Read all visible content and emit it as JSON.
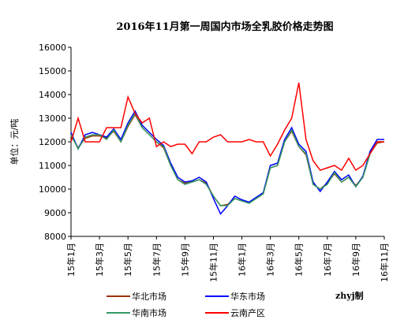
{
  "chart_data": {
    "type": "line",
    "title": "2016年11月第一周国内市场全乳胶价格走势图",
    "y_label": "单位：元/吨",
    "note": "zhyj制",
    "categories": [
      "15年1月",
      null,
      null,
      null,
      "15年3月",
      null,
      null,
      null,
      "15年5月",
      null,
      null,
      null,
      "15年7月",
      null,
      null,
      null,
      "15年9月",
      null,
      null,
      null,
      "15年11月",
      null,
      null,
      null,
      "16年1月",
      null,
      null,
      null,
      "16年3月",
      null,
      null,
      null,
      "16年5月",
      null,
      null,
      null,
      "16年7月",
      null,
      null,
      null,
      "16年9月",
      null,
      null,
      null,
      "16年11月"
    ],
    "ylim": [
      8000,
      16000
    ],
    "yticks": [
      8000,
      9000,
      10000,
      11000,
      12000,
      13000,
      14000,
      15000,
      16000
    ],
    "grid": false,
    "series": [
      {
        "name": "华北市场",
        "color": "#993300",
        "values": [
          12250,
          11750,
          12150,
          12250,
          12250,
          12150,
          12450,
          12000,
          12650,
          13150,
          12600,
          12300,
          12000,
          11750,
          11000,
          10400,
          10250,
          10300,
          10400,
          10250,
          9700,
          9300,
          9350,
          9600,
          9500,
          9450,
          9600,
          9800,
          10900,
          11000,
          12000,
          12450,
          11800,
          11450,
          10200,
          10000,
          10250,
          10650,
          10300,
          10500,
          10150,
          10500,
          11500,
          11950,
          12000
        ]
      },
      {
        "name": "华东市场",
        "color": "#0000ff",
        "values": [
          12400,
          11700,
          12300,
          12400,
          12300,
          12200,
          12550,
          12100,
          12800,
          13300,
          12700,
          12400,
          12100,
          11850,
          11100,
          10500,
          10300,
          10350,
          10500,
          10300,
          9600,
          8950,
          9300,
          9700,
          9550,
          9450,
          9650,
          9850,
          11000,
          11100,
          12100,
          12600,
          11900,
          11600,
          10300,
          9900,
          10300,
          10750,
          10400,
          10600,
          10100,
          10550,
          11600,
          12100,
          12100
        ]
      },
      {
        "name": "华南市场",
        "color": "#339966",
        "values": [
          12300,
          11700,
          12200,
          12300,
          12300,
          12100,
          12500,
          12000,
          12700,
          13200,
          12600,
          12300,
          12000,
          11800,
          11000,
          10400,
          10200,
          10300,
          10400,
          10200,
          9700,
          9300,
          9300,
          9600,
          9500,
          9400,
          9600,
          9800,
          10900,
          11000,
          12000,
          12500,
          11800,
          11500,
          10200,
          10000,
          10200,
          10700,
          10300,
          10500,
          10100,
          10500,
          11500,
          12000,
          12000
        ]
      },
      {
        "name": "云南产区",
        "color": "#ff0000",
        "values": [
          12000,
          13000,
          12000,
          12000,
          12000,
          12600,
          12600,
          12600,
          13900,
          13200,
          12800,
          13000,
          11800,
          12000,
          11800,
          11900,
          11900,
          11500,
          12000,
          12000,
          12200,
          12300,
          12000,
          12000,
          12000,
          12100,
          12000,
          12000,
          11400,
          11900,
          12500,
          13000,
          14500,
          12100,
          11200,
          10800,
          10900,
          11000,
          10800,
          11300,
          10800,
          11000,
          11500,
          12000,
          12000
        ]
      }
    ]
  }
}
